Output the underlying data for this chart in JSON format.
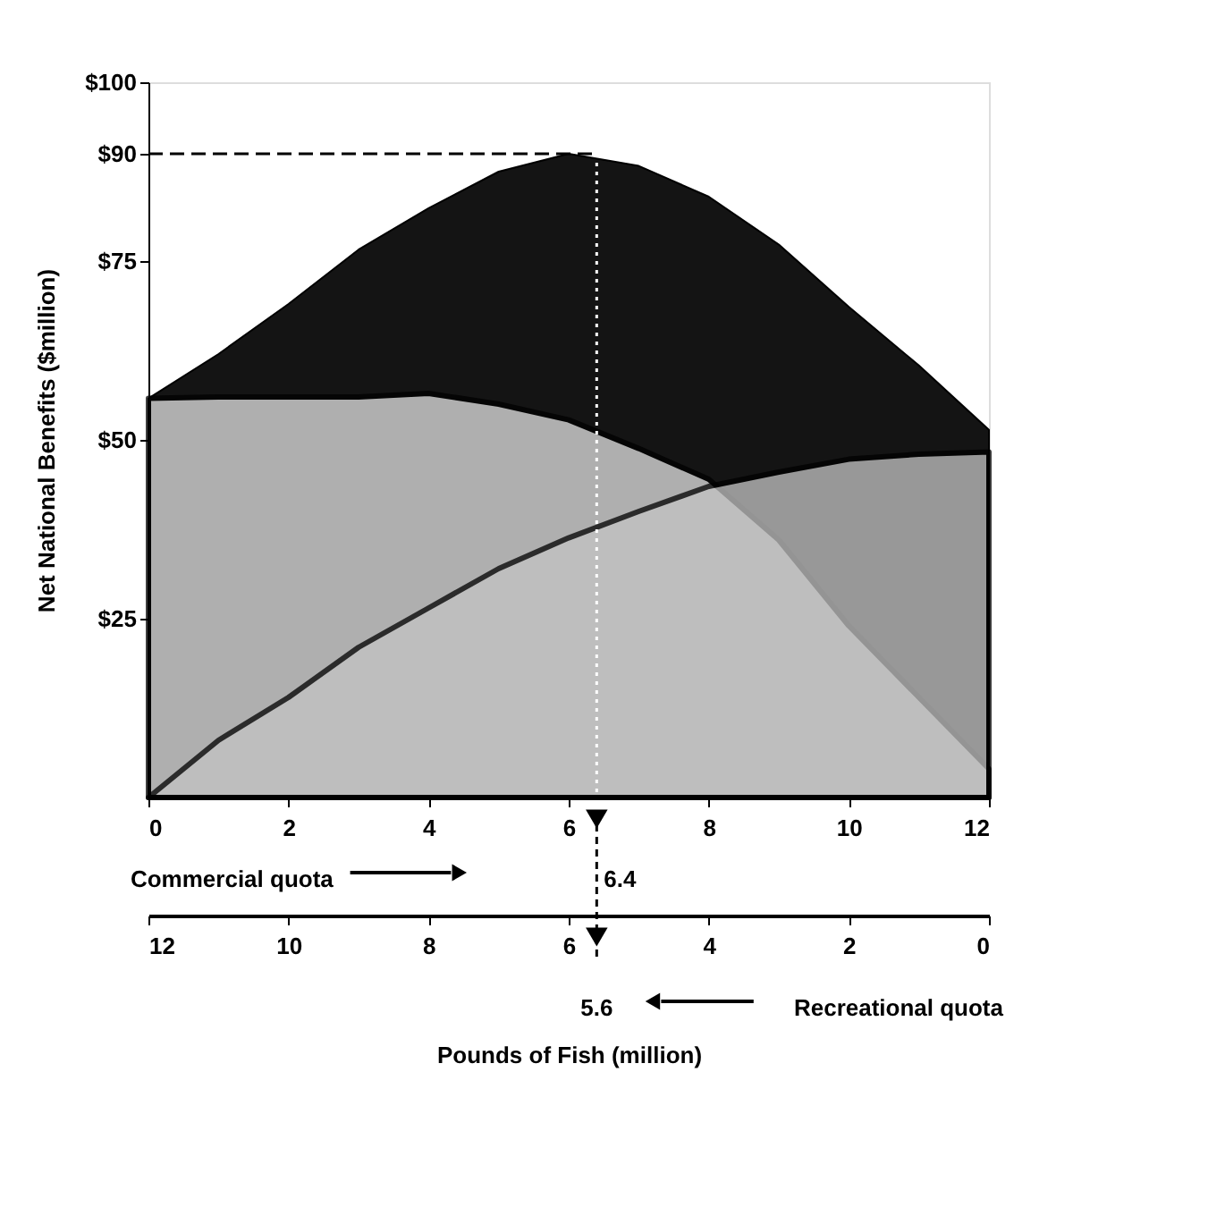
{
  "chart_data": {
    "type": "area",
    "xlabel": "Pounds of Fish (million)",
    "ylabel": "Net National Benefits  ($million)",
    "x": [
      0,
      1,
      2,
      3,
      4,
      5,
      6,
      7,
      8,
      9,
      10,
      11,
      12
    ],
    "series": [
      {
        "color": "#141414",
        "values": [
          55.8,
          62,
          69,
          76.6,
          82.4,
          87.5,
          90,
          88.3,
          84,
          77.3,
          68.6,
          60.4,
          51.4
        ]
      },
      {
        "color": "#e3e3e3",
        "values": [
          55.8,
          56,
          56,
          56,
          56.5,
          55,
          52.8,
          48.8,
          44.5,
          36,
          24,
          14,
          4
        ]
      },
      {
        "color": "#c4c4c4",
        "values": [
          0,
          8,
          14,
          21,
          26.5,
          32,
          36.3,
          40,
          43.5,
          45.5,
          47.3,
          48,
          48.3
        ]
      }
    ],
    "xlim": [
      0,
      12
    ],
    "xticks": [
      0,
      2,
      4,
      6,
      8,
      10,
      12
    ],
    "x2lim": [
      12,
      0
    ],
    "x2ticks": [
      12,
      10,
      8,
      6,
      4,
      2,
      0
    ],
    "ylim": [
      0,
      100
    ],
    "yticks": [
      {
        "value": 25,
        "label": "$25"
      },
      {
        "value": 50,
        "label": "$50"
      },
      {
        "value": 75,
        "label": "$75"
      },
      {
        "value": 90,
        "label": "$90"
      },
      {
        "value": 100,
        "label": "$100"
      }
    ],
    "ref_lines": [
      {
        "axis": "y",
        "value": 90,
        "line_style": "dashed"
      },
      {
        "axis": "x",
        "value": 6.4,
        "label": "6.4",
        "line_style": "dotted"
      }
    ],
    "annotations": [
      "Commercial quota",
      "5.6",
      "Recreational quota"
    ],
    "grid": false
  }
}
